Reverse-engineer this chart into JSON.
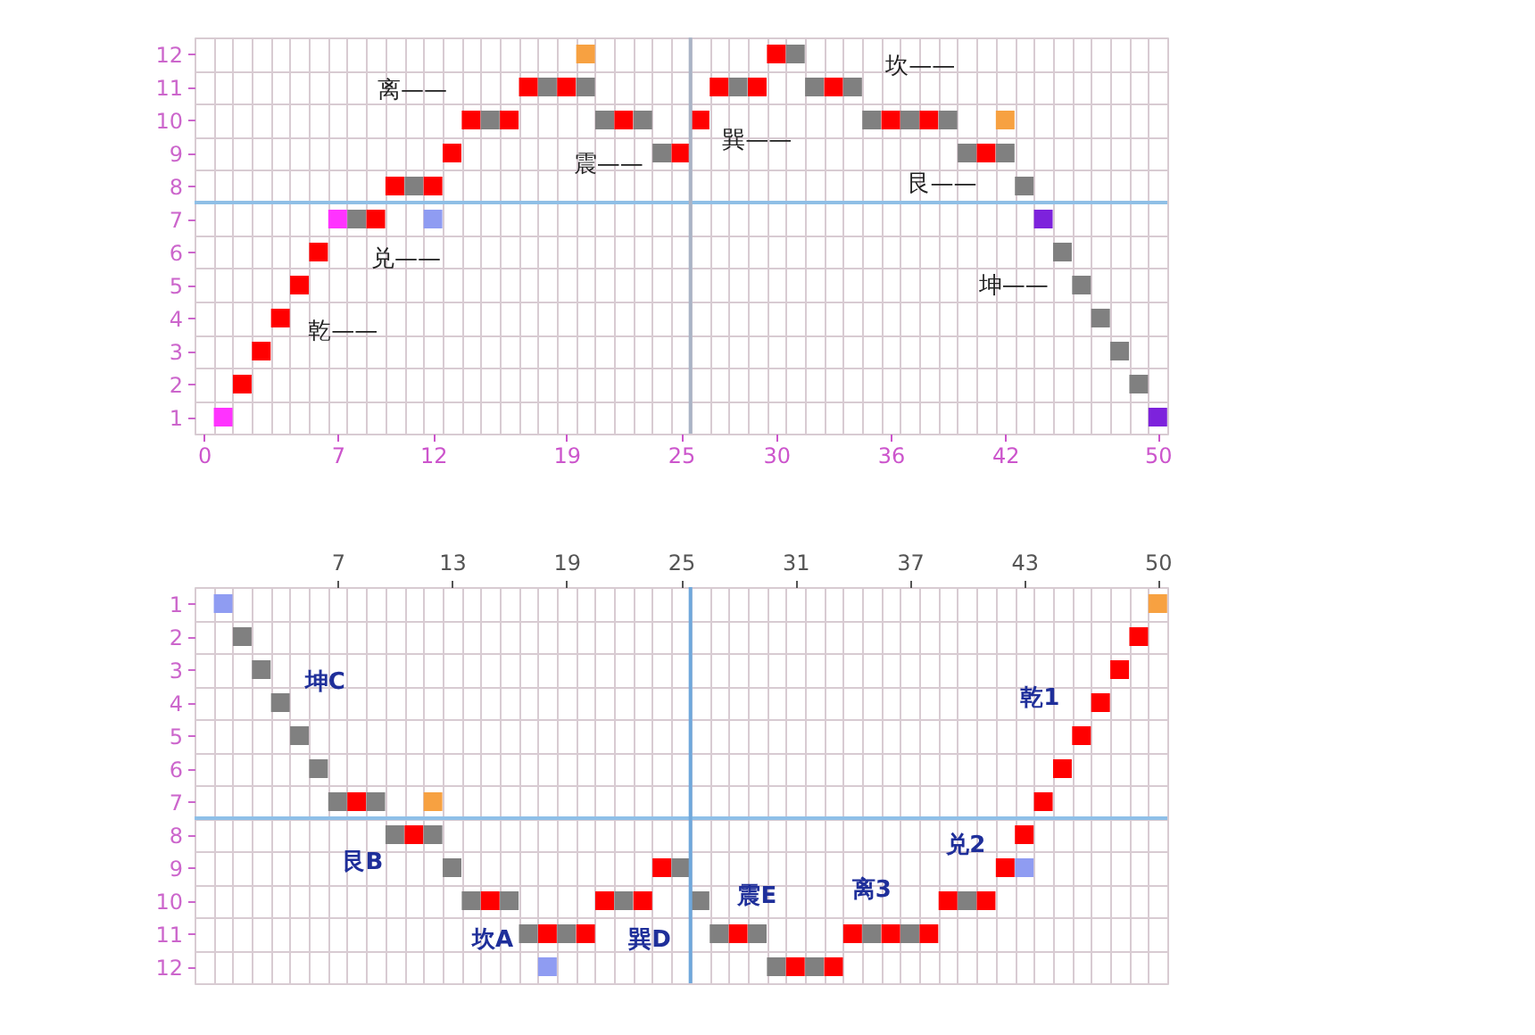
{
  "chart_data": [
    {
      "type": "scatter",
      "marker": "square",
      "grid": true,
      "x": [
        1,
        2,
        3,
        4,
        5,
        6,
        7,
        8,
        9,
        10,
        11,
        12,
        13,
        14,
        15,
        16,
        17,
        18,
        19,
        20,
        21,
        22,
        23,
        24,
        25,
        26,
        27,
        28,
        29,
        30,
        31,
        32,
        33,
        34,
        35,
        36,
        37,
        38,
        39,
        40,
        41,
        42,
        43,
        44,
        45,
        46,
        47,
        48,
        49,
        50,
        12,
        20,
        42
      ],
      "values": [
        1,
        2,
        3,
        4,
        5,
        6,
        7,
        7,
        7,
        8,
        8,
        8,
        9,
        10,
        10,
        10,
        11,
        11,
        11,
        11,
        10,
        10,
        10,
        9,
        9,
        10,
        11,
        11,
        11,
        12,
        12,
        11,
        11,
        11,
        10,
        10,
        10,
        10,
        10,
        9,
        9,
        9,
        8,
        7,
        6,
        5,
        4,
        3,
        2,
        1,
        7,
        12,
        10
      ],
      "colors": [
        "#ff33ff",
        "#ff0000",
        "#ff0000",
        "#ff0000",
        "#ff0000",
        "#ff0000",
        "#ff33ff",
        "#808080",
        "#ff0000",
        "#ff0000",
        "#808080",
        "#ff0000",
        "#ff0000",
        "#ff0000",
        "#808080",
        "#ff0000",
        "#ff0000",
        "#808080",
        "#ff0000",
        "#808080",
        "#808080",
        "#ff0000",
        "#808080",
        "#808080",
        "#ff0000",
        "#ff0000",
        "#ff0000",
        "#808080",
        "#ff0000",
        "#ff0000",
        "#808080",
        "#808080",
        "#ff0000",
        "#808080",
        "#808080",
        "#ff0000",
        "#808080",
        "#ff0000",
        "#808080",
        "#808080",
        "#ff0000",
        "#808080",
        "#808080",
        "#7d22dc",
        "#808080",
        "#808080",
        "#808080",
        "#808080",
        "#808080",
        "#7d22dc",
        "#8f9cf2",
        "#f7a141",
        "#f7a141"
      ],
      "xlim": [
        -0.5,
        50.5
      ],
      "ylim": [
        0.5,
        12.5
      ],
      "xticks": [
        0,
        7,
        12,
        19,
        25,
        30,
        36,
        42,
        50,
        {
          "value": -0.5,
          "label": null
        },
        {
          "value": 0.5,
          "label": null
        },
        {
          "value": 1.5,
          "label": null
        },
        {
          "value": 2.5,
          "label": null
        },
        {
          "value": 3.5,
          "label": null
        },
        {
          "value": 4.5,
          "label": null
        },
        {
          "value": 5.5,
          "label": null
        },
        {
          "value": 6.5,
          "label": null
        },
        {
          "value": 7.5,
          "label": null
        },
        {
          "value": 8.5,
          "label": null
        },
        {
          "value": 9.5,
          "label": null
        },
        {
          "value": 10.5,
          "label": null
        },
        {
          "value": 11.5,
          "label": null
        },
        {
          "value": 12.5,
          "label": null
        },
        {
          "value": 13.5,
          "label": null
        },
        {
          "value": 14.5,
          "label": null
        },
        {
          "value": 15.5,
          "label": null
        },
        {
          "value": 16.5,
          "label": null
        },
        {
          "value": 17.5,
          "label": null
        },
        {
          "value": 18.5,
          "label": null
        },
        {
          "value": 19.5,
          "label": null
        },
        {
          "value": 20.5,
          "label": null
        },
        {
          "value": 21.5,
          "label": null
        },
        {
          "value": 22.5,
          "label": null
        },
        {
          "value": 23.5,
          "label": null
        },
        {
          "value": 24.5,
          "label": null
        },
        {
          "value": 25.5,
          "label": null
        },
        {
          "value": 26.5,
          "label": null
        },
        {
          "value": 27.5,
          "label": null
        },
        {
          "value": 28.5,
          "label": null
        },
        {
          "value": 29.5,
          "label": null
        },
        {
          "value": 30.5,
          "label": null
        },
        {
          "value": 31.5,
          "label": null
        },
        {
          "value": 32.5,
          "label": null
        },
        {
          "value": 33.5,
          "label": null
        },
        {
          "value": 34.5,
          "label": null
        },
        {
          "value": 35.5,
          "label": null
        },
        {
          "value": 36.5,
          "label": null
        },
        {
          "value": 37.5,
          "label": null
        },
        {
          "value": 38.5,
          "label": null
        },
        {
          "value": 39.5,
          "label": null
        },
        {
          "value": 40.5,
          "label": null
        },
        {
          "value": 41.5,
          "label": null
        },
        {
          "value": 42.5,
          "label": null
        },
        {
          "value": 43.5,
          "label": null
        },
        {
          "value": 44.5,
          "label": null
        },
        {
          "value": 45.5,
          "label": null
        },
        {
          "value": 46.5,
          "label": null
        },
        {
          "value": 47.5,
          "label": null
        },
        {
          "value": 48.5,
          "label": null
        },
        {
          "value": 49.5,
          "label": null
        },
        {
          "value": 50.5,
          "label": null
        }
      ],
      "yticks": [
        1,
        2,
        3,
        4,
        5,
        6,
        7,
        8,
        9,
        10,
        11,
        12,
        {
          "value": 0.5,
          "label": null
        },
        {
          "value": 1.5,
          "label": null
        },
        {
          "value": 2.5,
          "label": null
        },
        {
          "value": 3.5,
          "label": null
        },
        {
          "value": 4.5,
          "label": null
        },
        {
          "value": 5.5,
          "label": null
        },
        {
          "value": 6.5,
          "label": null
        },
        {
          "value": 7.5,
          "label": null
        },
        {
          "value": 8.5,
          "label": null
        },
        {
          "value": 9.5,
          "label": null
        },
        {
          "value": 10.5,
          "label": null
        },
        {
          "value": 11.5,
          "label": null
        },
        {
          "value": 12.5,
          "label": null
        }
      ],
      "ref_lines": [
        {
          "axis": "y",
          "value": 7.5,
          "color": "#8fbfe6"
        },
        {
          "axis": "x",
          "value": 25.5,
          "color": "#aab4c6"
        }
      ],
      "annotations": [
        {
          "text": "乾——",
          "x": 4,
          "y": 4
        },
        {
          "text": "兑——",
          "x": 9,
          "y": 7
        },
        {
          "text": "离——",
          "x": 14,
          "y": 10
        },
        {
          "text": "震——",
          "x": 24,
          "y": 9
        },
        {
          "text": "巽——",
          "x": 26,
          "y": 10
        },
        {
          "text": "坎——",
          "x": 34,
          "y": 11
        },
        {
          "text": "艮——",
          "x": 40,
          "y": 9
        },
        {
          "text": "坤——",
          "x": 46,
          "y": 5
        }
      ]
    },
    {
      "type": "scatter",
      "marker": "square",
      "grid": true,
      "x": [
        1,
        2,
        3,
        4,
        5,
        6,
        7,
        8,
        9,
        10,
        11,
        12,
        13,
        14,
        15,
        16,
        17,
        18,
        19,
        20,
        21,
        22,
        23,
        24,
        25,
        26,
        27,
        28,
        29,
        30,
        31,
        32,
        33,
        34,
        35,
        36,
        37,
        38,
        39,
        40,
        41,
        42,
        43,
        44,
        45,
        46,
        47,
        48,
        49,
        50,
        12,
        18,
        43
      ],
      "values": [
        1,
        2,
        3,
        4,
        5,
        6,
        7,
        7,
        7,
        8,
        8,
        8,
        9,
        10,
        10,
        10,
        11,
        11,
        11,
        11,
        10,
        10,
        10,
        9,
        9,
        10,
        11,
        11,
        11,
        12,
        12,
        12,
        12,
        11,
        11,
        11,
        11,
        11,
        10,
        10,
        10,
        9,
        8,
        7,
        6,
        5,
        4,
        3,
        2,
        1,
        7,
        12,
        9
      ],
      "colors": [
        "#8f9cf2",
        "#808080",
        "#808080",
        "#808080",
        "#808080",
        "#808080",
        "#808080",
        "#ff0000",
        "#808080",
        "#808080",
        "#ff0000",
        "#808080",
        "#808080",
        "#808080",
        "#ff0000",
        "#808080",
        "#808080",
        "#ff0000",
        "#808080",
        "#ff0000",
        "#ff0000",
        "#808080",
        "#ff0000",
        "#ff0000",
        "#808080",
        "#808080",
        "#808080",
        "#ff0000",
        "#808080",
        "#808080",
        "#ff0000",
        "#808080",
        "#ff0000",
        "#ff0000",
        "#808080",
        "#ff0000",
        "#808080",
        "#ff0000",
        "#ff0000",
        "#808080",
        "#ff0000",
        "#ff0000",
        "#ff0000",
        "#ff0000",
        "#ff0000",
        "#ff0000",
        "#ff0000",
        "#ff0000",
        "#ff0000",
        "#f7a141",
        "#f7a141",
        "#8f9cf2",
        "#8f9cf2"
      ],
      "xlim": [
        -0.5,
        50.5
      ],
      "ylim": [
        12.5,
        0.5
      ],
      "xticks": [
        7,
        13,
        19,
        25,
        31,
        37,
        43,
        50,
        {
          "value": -0.5,
          "label": null
        },
        {
          "value": 0.5,
          "label": null
        },
        {
          "value": 1.5,
          "label": null
        },
        {
          "value": 2.5,
          "label": null
        },
        {
          "value": 3.5,
          "label": null
        },
        {
          "value": 4.5,
          "label": null
        },
        {
          "value": 5.5,
          "label": null
        },
        {
          "value": 6.5,
          "label": null
        },
        {
          "value": 7.5,
          "label": null
        },
        {
          "value": 8.5,
          "label": null
        },
        {
          "value": 9.5,
          "label": null
        },
        {
          "value": 10.5,
          "label": null
        },
        {
          "value": 11.5,
          "label": null
        },
        {
          "value": 12.5,
          "label": null
        },
        {
          "value": 13.5,
          "label": null
        },
        {
          "value": 14.5,
          "label": null
        },
        {
          "value": 15.5,
          "label": null
        },
        {
          "value": 16.5,
          "label": null
        },
        {
          "value": 17.5,
          "label": null
        },
        {
          "value": 18.5,
          "label": null
        },
        {
          "value": 19.5,
          "label": null
        },
        {
          "value": 20.5,
          "label": null
        },
        {
          "value": 21.5,
          "label": null
        },
        {
          "value": 22.5,
          "label": null
        },
        {
          "value": 23.5,
          "label": null
        },
        {
          "value": 24.5,
          "label": null
        },
        {
          "value": 25.5,
          "label": null
        },
        {
          "value": 26.5,
          "label": null
        },
        {
          "value": 27.5,
          "label": null
        },
        {
          "value": 28.5,
          "label": null
        },
        {
          "value": 29.5,
          "label": null
        },
        {
          "value": 30.5,
          "label": null
        },
        {
          "value": 31.5,
          "label": null
        },
        {
          "value": 32.5,
          "label": null
        },
        {
          "value": 33.5,
          "label": null
        },
        {
          "value": 34.5,
          "label": null
        },
        {
          "value": 35.5,
          "label": null
        },
        {
          "value": 36.5,
          "label": null
        },
        {
          "value": 37.5,
          "label": null
        },
        {
          "value": 38.5,
          "label": null
        },
        {
          "value": 39.5,
          "label": null
        },
        {
          "value": 40.5,
          "label": null
        },
        {
          "value": 41.5,
          "label": null
        },
        {
          "value": 42.5,
          "label": null
        },
        {
          "value": 43.5,
          "label": null
        },
        {
          "value": 44.5,
          "label": null
        },
        {
          "value": 45.5,
          "label": null
        },
        {
          "value": 46.5,
          "label": null
        },
        {
          "value": 47.5,
          "label": null
        },
        {
          "value": 48.5,
          "label": null
        },
        {
          "value": 49.5,
          "label": null
        },
        {
          "value": 50.5,
          "label": null
        }
      ],
      "yticks": [
        1,
        2,
        3,
        4,
        5,
        6,
        7,
        8,
        9,
        10,
        11,
        12,
        {
          "value": 0.5,
          "label": null
        },
        {
          "value": 1.5,
          "label": null
        },
        {
          "value": 2.5,
          "label": null
        },
        {
          "value": 3.5,
          "label": null
        },
        {
          "value": 4.5,
          "label": null
        },
        {
          "value": 5.5,
          "label": null
        },
        {
          "value": 6.5,
          "label": null
        },
        {
          "value": 7.5,
          "label": null
        },
        {
          "value": 8.5,
          "label": null
        },
        {
          "value": 9.5,
          "label": null
        },
        {
          "value": 10.5,
          "label": null
        },
        {
          "value": 11.5,
          "label": null
        },
        {
          "value": 12.5,
          "label": null
        }
      ],
      "ref_lines": [
        {
          "axis": "y",
          "value": 7.5,
          "color": "#8fc0e8"
        },
        {
          "axis": "x",
          "value": 25.5,
          "color": "#6fa8dc"
        }
      ],
      "annotations": [
        {
          "text": "坤C",
          "x": 4,
          "y": 4
        },
        {
          "text": "艮B",
          "x": 10,
          "y": 8
        },
        {
          "text": "坎A",
          "x": 17,
          "y": 11
        },
        {
          "text": "巽D",
          "x": 20,
          "y": 11
        },
        {
          "text": "震E",
          "x": 26,
          "y": 10
        },
        {
          "text": "离3",
          "x": 35,
          "y": 11
        },
        {
          "text": "兑2",
          "x": 42,
          "y": 9
        },
        {
          "text": "乾1",
          "x": 47,
          "y": 4
        }
      ]
    }
  ]
}
